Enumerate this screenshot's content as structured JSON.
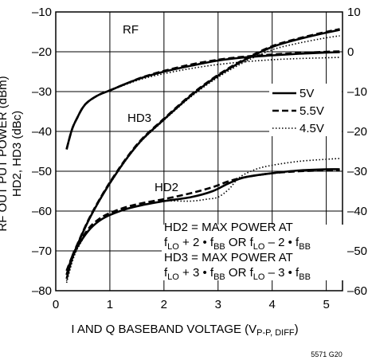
{
  "chart_data": {
    "type": "line",
    "xlabel": "I AND Q BASEBAND VOLTAGE (V",
    "xlabel_sub": "P-P, DIFF",
    "xlabel_close": ")",
    "ylabel_left": "HD2, HD3 (dBc)",
    "ylabel_left_cut": "RF OUT PUT POWER (dBm)",
    "xlim": [
      0,
      5.3
    ],
    "ylim_left": [
      -80,
      -10
    ],
    "ylim_right": [
      -60,
      10
    ],
    "x_ticks": [
      0,
      1,
      2,
      3,
      4,
      5
    ],
    "y_ticks_left": [
      -80,
      -70,
      -60,
      -50,
      -40,
      -30,
      -20,
      -10
    ],
    "y_ticks_right": [
      -60,
      -50,
      -40,
      -30,
      -20,
      -10,
      0,
      10
    ],
    "grid": true,
    "legend_position": "right",
    "figure_id": "5571 G20",
    "labels": {
      "rf": "RF",
      "hd3": "HD3",
      "hd2": "HD2"
    },
    "annotation": {
      "line1": "HD2 = MAX POWER AT",
      "line2": [
        "f",
        "LO",
        " + 2 • f",
        "BB",
        " OR f",
        "LO",
        " – 2 • f",
        "BB"
      ],
      "line3": "HD3 = MAX POWER AT",
      "line4": [
        "f",
        "LO",
        " + 3 • f",
        "BB",
        " OR f",
        "LO",
        " – 3 • f",
        "BB"
      ]
    },
    "series": [
      {
        "name": "5V",
        "style": "solid",
        "group": "RF",
        "axis": "right",
        "x": [
          0.2,
          0.3,
          0.4,
          0.5,
          0.6,
          0.8,
          1.0,
          1.3,
          1.6,
          2.0,
          2.5,
          3.0,
          3.5,
          4.0,
          4.5,
          5.0,
          5.25
        ],
        "y": [
          -24.5,
          -19.5,
          -16.5,
          -14.0,
          -12.5,
          -10.8,
          -9.7,
          -8.0,
          -6.5,
          -5.0,
          -3.5,
          -2.2,
          -1.4,
          -0.9,
          -0.5,
          -0.2,
          -0.1
        ]
      },
      {
        "name": "5.5V",
        "style": "dashed",
        "group": "RF",
        "axis": "right",
        "x": [
          0.2,
          0.3,
          0.4,
          0.5,
          0.6,
          0.8,
          1.0,
          1.3,
          1.6,
          2.0,
          2.5,
          3.0,
          3.5,
          4.0,
          4.5,
          5.0,
          5.25
        ],
        "y": [
          -24.5,
          -19.5,
          -16.5,
          -14.0,
          -12.5,
          -10.8,
          -9.7,
          -8.0,
          -6.4,
          -4.8,
          -3.2,
          -2.0,
          -1.2,
          -0.7,
          -0.3,
          0.0,
          0.1
        ]
      },
      {
        "name": "4.5V",
        "style": "dotted",
        "group": "RF",
        "axis": "right",
        "x": [
          0.2,
          0.3,
          0.4,
          0.5,
          0.6,
          0.8,
          1.0,
          1.3,
          1.6,
          2.0,
          2.5,
          3.0,
          3.5,
          4.0,
          4.5,
          5.0,
          5.25
        ],
        "y": [
          -24.5,
          -19.5,
          -16.5,
          -14.0,
          -12.5,
          -10.8,
          -9.8,
          -8.2,
          -6.8,
          -5.5,
          -4.2,
          -3.2,
          -2.5,
          -2.0,
          -1.7,
          -1.5,
          -1.4
        ]
      },
      {
        "name": "5V",
        "style": "solid",
        "group": "HD3",
        "axis": "left",
        "x": [
          0.2,
          0.3,
          0.4,
          0.6,
          0.8,
          1.0,
          1.3,
          1.6,
          2.0,
          2.5,
          3.0,
          3.5,
          4.0,
          4.5,
          5.0,
          5.25
        ],
        "y": [
          -77.0,
          -72.0,
          -68.5,
          -62.5,
          -57.5,
          -53.0,
          -47.0,
          -42.0,
          -37.0,
          -31.0,
          -26.0,
          -22.0,
          -18.8,
          -16.8,
          -15.2,
          -14.5
        ]
      },
      {
        "name": "5.5V",
        "style": "dashed",
        "group": "HD3",
        "axis": "left",
        "x": [
          0.2,
          0.3,
          0.4,
          0.6,
          0.8,
          1.0,
          1.3,
          1.6,
          2.0,
          2.5,
          3.0,
          3.5,
          4.0,
          4.5,
          5.0,
          5.25
        ],
        "y": [
          -76.0,
          -71.5,
          -68.3,
          -62.3,
          -57.3,
          -52.8,
          -46.8,
          -41.8,
          -36.8,
          -30.8,
          -25.8,
          -21.8,
          -18.6,
          -16.6,
          -15.0,
          -14.3
        ]
      },
      {
        "name": "4.5V",
        "style": "dotted",
        "group": "HD3",
        "axis": "left",
        "x": [
          0.2,
          0.3,
          0.4,
          0.6,
          0.8,
          1.0,
          1.3,
          1.6,
          2.0,
          2.5,
          3.0,
          3.5,
          4.0,
          4.5,
          5.0,
          5.25
        ],
        "y": [
          -77.5,
          -72.3,
          -68.7,
          -62.7,
          -57.7,
          -53.2,
          -47.2,
          -42.2,
          -37.2,
          -31.3,
          -26.4,
          -22.5,
          -19.5,
          -17.8,
          -16.5,
          -16.0
        ]
      },
      {
        "name": "5V",
        "style": "solid",
        "group": "HD2",
        "axis": "left",
        "x": [
          0.2,
          0.3,
          0.4,
          0.6,
          0.8,
          1.0,
          1.3,
          1.6,
          2.0,
          2.5,
          2.9,
          3.2,
          3.5,
          4.0,
          4.5,
          5.0,
          5.25
        ],
        "y": [
          -76.0,
          -72.0,
          -69.0,
          -65.0,
          -62.5,
          -61.0,
          -59.5,
          -58.5,
          -57.5,
          -56.5,
          -55.0,
          -53.0,
          -51.5,
          -50.5,
          -49.8,
          -49.5,
          -49.5
        ]
      },
      {
        "name": "5.5V",
        "style": "dashed",
        "group": "HD2",
        "axis": "left",
        "x": [
          0.2,
          0.3,
          0.4,
          0.6,
          0.8,
          1.0,
          1.3,
          1.6,
          2.0,
          2.5,
          2.9,
          3.2,
          3.5,
          4.0,
          4.5,
          5.0,
          5.25
        ],
        "y": [
          -75.0,
          -71.5,
          -68.8,
          -64.5,
          -62.0,
          -60.5,
          -59.0,
          -58.0,
          -57.0,
          -55.5,
          -54.0,
          -52.5,
          -51.5,
          -50.5,
          -50.0,
          -49.8,
          -49.8
        ]
      },
      {
        "name": "4.5V",
        "style": "dotted",
        "group": "HD2",
        "axis": "left",
        "x": [
          0.2,
          0.3,
          0.4,
          0.6,
          0.8,
          1.0,
          1.3,
          1.6,
          2.0,
          2.5,
          2.8,
          3.0,
          3.2,
          3.4,
          3.7,
          4.0,
          4.5,
          5.0,
          5.25
        ],
        "y": [
          -78.0,
          -73.0,
          -69.5,
          -65.0,
          -62.5,
          -61.0,
          -59.5,
          -58.5,
          -57.5,
          -57.5,
          -57.0,
          -56.5,
          -54.5,
          -51.5,
          -49.5,
          -48.5,
          -47.5,
          -47.0,
          -46.8
        ]
      }
    ],
    "legend": [
      {
        "name": "5V",
        "style": "solid"
      },
      {
        "name": "5.5V",
        "style": "dashed"
      },
      {
        "name": "4.5V",
        "style": "dotted"
      }
    ]
  }
}
